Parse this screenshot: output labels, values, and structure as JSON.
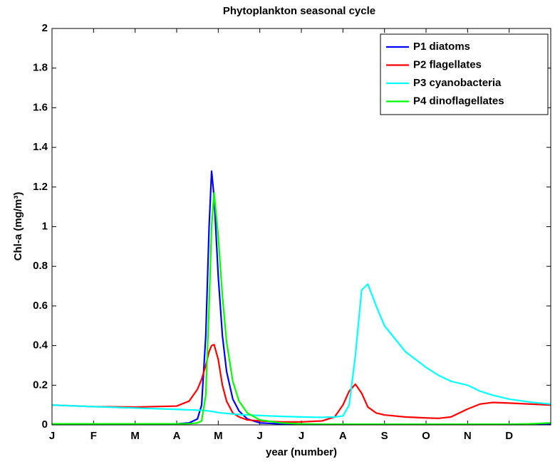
{
  "chart_data": {
    "type": "line",
    "title": "Phytoplankton seasonal cycle",
    "xlabel": "year (number)",
    "ylabel": "Chl-a (mg/m³)",
    "x": [
      0,
      1,
      2,
      3,
      3.3,
      3.5,
      3.6,
      3.7,
      3.78,
      3.84,
      3.9,
      4.0,
      4.1,
      4.2,
      4.35,
      4.5,
      4.7,
      5,
      5.5,
      6,
      6.5,
      6.8,
      7.0,
      7.15,
      7.3,
      7.45,
      7.6,
      7.8,
      8.0,
      8.5,
      9,
      9.3,
      9.6,
      10,
      10.3,
      10.6,
      11,
      11.5,
      12
    ],
    "series": [
      {
        "name": "P1 diatoms",
        "color": "#0000ff",
        "values": [
          0.005,
          0.005,
          0.005,
          0.005,
          0.01,
          0.03,
          0.1,
          0.45,
          1.0,
          1.28,
          1.15,
          0.75,
          0.45,
          0.27,
          0.13,
          0.07,
          0.03,
          0.01,
          0.005,
          0.003,
          0.002,
          0.002,
          0.002,
          0.002,
          0.002,
          0.002,
          0.002,
          0.002,
          0.002,
          0.002,
          0.002,
          0.002,
          0.002,
          0.002,
          0.002,
          0.002,
          0.002,
          0.003,
          0.005
        ]
      },
      {
        "name": "P2 flagellates",
        "color": "#ff0000",
        "values": [
          0.1,
          0.092,
          0.09,
          0.095,
          0.12,
          0.18,
          0.23,
          0.3,
          0.37,
          0.4,
          0.405,
          0.33,
          0.2,
          0.12,
          0.06,
          0.04,
          0.025,
          0.02,
          0.015,
          0.015,
          0.02,
          0.04,
          0.1,
          0.17,
          0.205,
          0.16,
          0.09,
          0.06,
          0.05,
          0.04,
          0.035,
          0.033,
          0.04,
          0.08,
          0.105,
          0.113,
          0.11,
          0.105,
          0.1
        ]
      },
      {
        "name": "P3 cyanobacteria",
        "color": "#00ffff",
        "values": [
          0.1,
          0.092,
          0.085,
          0.078,
          0.076,
          0.074,
          0.073,
          0.072,
          0.07,
          0.068,
          0.066,
          0.062,
          0.06,
          0.058,
          0.055,
          0.052,
          0.05,
          0.047,
          0.043,
          0.04,
          0.038,
          0.04,
          0.045,
          0.1,
          0.35,
          0.68,
          0.71,
          0.6,
          0.5,
          0.37,
          0.29,
          0.25,
          0.22,
          0.2,
          0.17,
          0.15,
          0.13,
          0.115,
          0.105
        ]
      },
      {
        "name": "P4 dinoflagellates",
        "color": "#00ff00",
        "values": [
          0.005,
          0.005,
          0.005,
          0.005,
          0.006,
          0.01,
          0.02,
          0.15,
          0.6,
          1.0,
          1.17,
          0.95,
          0.65,
          0.42,
          0.22,
          0.12,
          0.06,
          0.025,
          0.01,
          0.005,
          0.003,
          0.003,
          0.003,
          0.003,
          0.003,
          0.003,
          0.003,
          0.003,
          0.003,
          0.003,
          0.003,
          0.003,
          0.003,
          0.003,
          0.003,
          0.003,
          0.003,
          0.005,
          0.01
        ]
      }
    ],
    "xlim": [
      0,
      12
    ],
    "xticks": [
      {
        "value": 0,
        "label": "J"
      },
      {
        "value": 1,
        "label": "F"
      },
      {
        "value": 2,
        "label": "M"
      },
      {
        "value": 3,
        "label": "A"
      },
      {
        "value": 4,
        "label": "M"
      },
      {
        "value": 5,
        "label": "J"
      },
      {
        "value": 6,
        "label": "J"
      },
      {
        "value": 7,
        "label": "A"
      },
      {
        "value": 8,
        "label": "S"
      },
      {
        "value": 9,
        "label": "O"
      },
      {
        "value": 10,
        "label": "N"
      },
      {
        "value": 11,
        "label": "D"
      }
    ],
    "ylim": [
      0,
      2
    ],
    "yticks": [
      0,
      0.2,
      0.4,
      0.6,
      0.8,
      1,
      1.2,
      1.4,
      1.6,
      1.8,
      2
    ],
    "legend": "top-right"
  }
}
